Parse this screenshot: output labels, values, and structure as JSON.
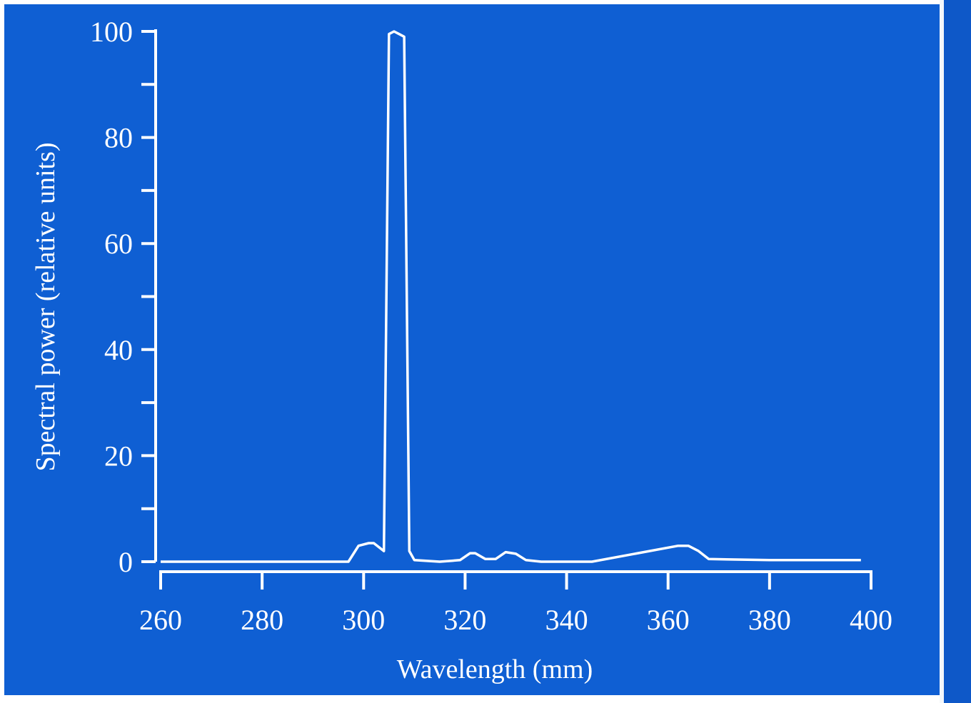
{
  "chart_data": {
    "type": "line",
    "xlabel": "Wavelength (mm)",
    "ylabel": "Spectral power (relative units)",
    "xlim": [
      260,
      400
    ],
    "ylim": [
      0,
      100
    ],
    "x_ticks": [
      "260",
      "280",
      "300",
      "320",
      "340",
      "360",
      "380",
      "400"
    ],
    "y_ticks": [
      "0",
      "20",
      "40",
      "60",
      "80",
      "100"
    ],
    "grid": false,
    "colors": {
      "background": "#0f5fd3",
      "line": "#ffffff"
    },
    "series": [
      {
        "x": [
          260,
          297,
          299,
          301,
          302,
          304,
          305,
          306,
          307,
          308,
          309,
          310,
          315,
          319,
          321,
          322,
          324,
          326,
          328,
          330,
          332,
          335,
          340,
          345,
          362,
          364,
          366,
          368,
          380,
          398
        ],
        "y": [
          0,
          0,
          3,
          3.5,
          3.5,
          2,
          99.5,
          100,
          99.5,
          99,
          2,
          0.3,
          0,
          0.3,
          1.6,
          1.6,
          0.5,
          0.5,
          1.8,
          1.5,
          0.3,
          0,
          0,
          0,
          3,
          3,
          2,
          0.5,
          0.3,
          0.3
        ]
      }
    ]
  }
}
